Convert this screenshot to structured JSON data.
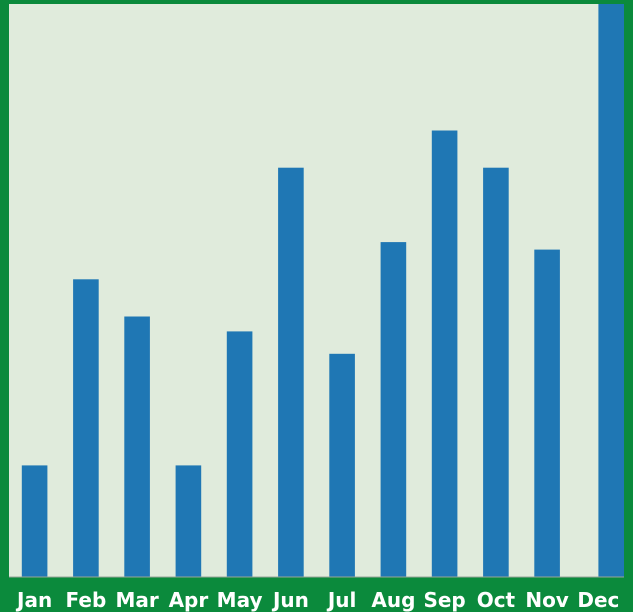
{
  "chart_data": {
    "type": "bar",
    "categories": [
      "Jan",
      "Feb",
      "Mar",
      "Apr",
      "May",
      "Jun",
      "Jul",
      "Aug",
      "Sep",
      "Oct",
      "Nov",
      "Dec"
    ],
    "values": [
      30,
      80,
      70,
      30,
      66,
      110,
      60,
      90,
      120,
      110,
      88,
      154
    ],
    "ylim": [
      0,
      154
    ],
    "grid": false,
    "legend": "none",
    "title": "",
    "xlabel": "",
    "ylabel": ""
  },
  "colors": {
    "frame": "#0b8a3c",
    "plot_background": "#e0ebdc",
    "bar": "#1f77b4",
    "tick_label": "#ffffff"
  }
}
